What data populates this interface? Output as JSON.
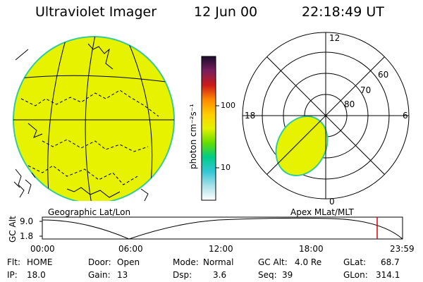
{
  "header": {
    "title": "Ultraviolet Imager",
    "date": "12 Jun 00",
    "time": "22:18:49 UT"
  },
  "colors": {
    "aurora_fill": "#e6f200",
    "aurora_edge": "#33cc99"
  },
  "colorbar": {
    "unit_label": "photon cm⁻²s⁻¹",
    "ticks": [
      "100",
      "10"
    ],
    "stops": [
      "#1a0a2e",
      "#7a1f5c",
      "#cc1a1a",
      "#ff8800",
      "#ffcc00",
      "#e6f200",
      "#66dd00",
      "#00cc88",
      "#33c6d6",
      "#a8e0e8",
      "#ffffff"
    ]
  },
  "left_panel": {
    "caption": "Geographic Lat/Lon"
  },
  "right_panel": {
    "caption": "Apex MLat/MLT",
    "mlt_labels": {
      "top": "12",
      "left": "18",
      "right": "6",
      "bottom": "0"
    },
    "lat_labels": [
      "60",
      "70",
      "80"
    ]
  },
  "orbit_plot": {
    "ylabel": "GC Alt",
    "y_ticks": [
      "9.0",
      "1.8"
    ],
    "x_ticks": [
      "00:00",
      "06:00",
      "12:00",
      "18:00",
      "23:59"
    ],
    "marker_color": "#dd0000"
  },
  "status": {
    "flt_label": "Flt:",
    "flt_value": "HOME",
    "ip_label": "IP:",
    "ip_value": "18.0",
    "door_label": "Door:",
    "door_value": "Open",
    "gain_label": "Gain:",
    "gain_value": "13",
    "mode_label": "Mode:",
    "mode_value": "Normal",
    "dsp_label": "Dsp:",
    "dsp_value": "3.6",
    "gcalt_label": "GC Alt:",
    "gcalt_value": "4.0 Re",
    "seq_label": "Seq:",
    "seq_value": "39",
    "glat_label": "GLat:",
    "glat_value": "68.7",
    "glon_label": "GLon:",
    "glon_value": "314.1"
  }
}
